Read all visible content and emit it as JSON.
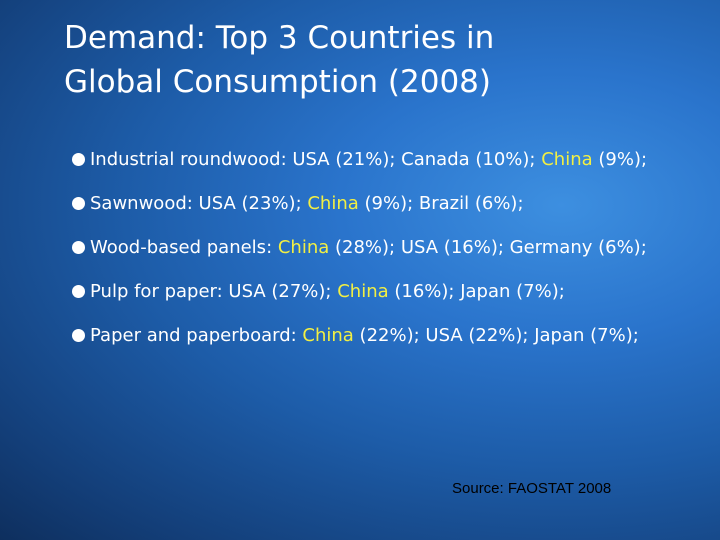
{
  "slide": {
    "title_lines": [
      "Demand: Top 3 Countries in",
      "Global Consumption (2008)"
    ],
    "bullets": [
      {
        "label": "Industrial roundwood: ",
        "parts": [
          "USA (21%); Canada (10%); ",
          "China",
          " (9%);"
        ]
      },
      {
        "label": "Sawnwood: ",
        "parts": [
          "USA (23%); ",
          "China",
          " (9%); Brazil (6%);"
        ]
      },
      {
        "label": "Wood-based panels: ",
        "parts": [
          "",
          "China",
          " (28%); USA (16%); Germany (6%);"
        ]
      },
      {
        "label": "Pulp for paper: ",
        "parts": [
          "USA (27%); ",
          "China",
          " (16%); Japan (7%);"
        ]
      },
      {
        "label": "Paper and paperboard: ",
        "parts": [
          "",
          "China",
          " (22%); USA (22%); Japan (7%);"
        ]
      }
    ],
    "source": "Source: FAOSTAT 2008"
  },
  "colors": {
    "background": "#1d5ca8",
    "text": "#ffffff",
    "highlight": "#f2ef43",
    "source_text": "#000000"
  }
}
